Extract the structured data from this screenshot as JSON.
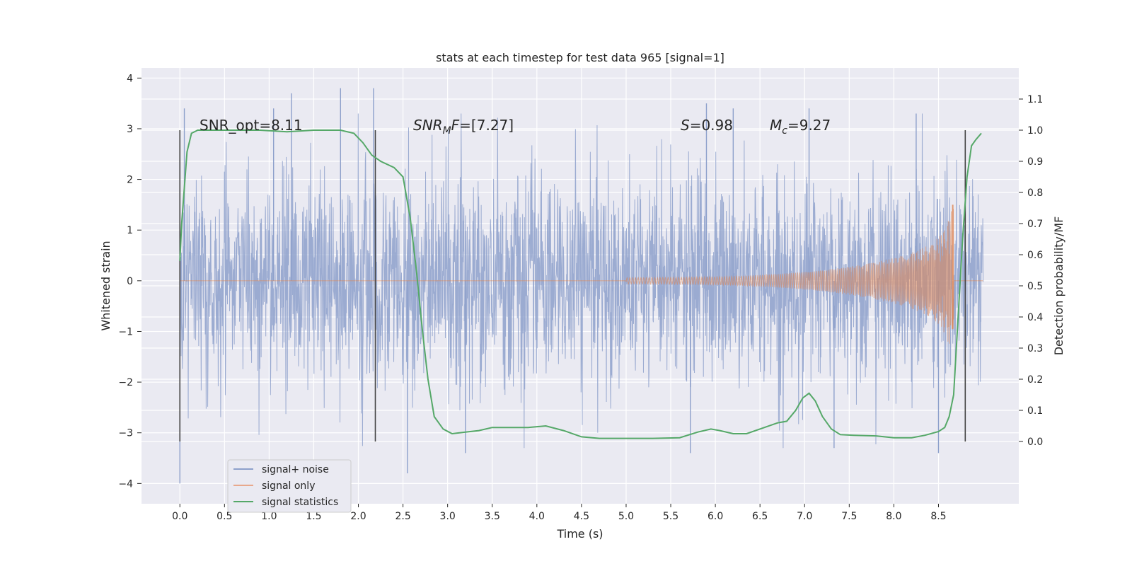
{
  "chart_data": {
    "type": "line",
    "title": "stats at each timestep for test data 965 [signal=1]",
    "xlabel": "Time (s)",
    "ylabel_left": "Whitened strain",
    "ylabel_right": "Detection probability/MF",
    "xlim": [
      -0.43,
      9.4
    ],
    "ylim_left": [
      -4.4,
      4.2
    ],
    "ylim_right": [
      -0.2,
      1.2
    ],
    "x_ticks": [
      "0.0",
      "0.5",
      "1.0",
      "1.5",
      "2.0",
      "2.5",
      "3.0",
      "3.5",
      "4.0",
      "4.5",
      "5.0",
      "5.5",
      "6.0",
      "6.5",
      "7.0",
      "7.5",
      "8.0",
      "8.5"
    ],
    "y_left_ticks": [
      "4",
      "3",
      "2",
      "1",
      "0",
      "−1",
      "−2",
      "−3",
      "−4"
    ],
    "y_right_ticks": [
      "1.1",
      "1.0",
      "0.9",
      "0.8",
      "0.7",
      "0.6",
      "0.5",
      "0.4",
      "0.3",
      "0.2",
      "0.1",
      "0.0"
    ],
    "grid": true,
    "annotations": {
      "snr_opt": "SNR_opt=8.11",
      "snr_mf_sym": "SNR",
      "snr_mf_sub": "M",
      "snr_mf_mid": "F",
      "snr_mf_val": "=[7.27]",
      "s_sym": "S",
      "s_val": "=0.98",
      "mc_sym": "M",
      "mc_sub": "c",
      "mc_val": "=9.27"
    },
    "vertical_markers": [
      0.0,
      2.19,
      8.8
    ],
    "legend": {
      "position": "lower-left",
      "entries": [
        {
          "label": "signal+ noise",
          "color": "#8da0cb"
        },
        {
          "label": "signal only",
          "color": "#e8a88c"
        },
        {
          "label": "signal statistics",
          "color": "#55a868"
        }
      ]
    },
    "series": [
      {
        "name": "signal+ noise",
        "axis": "left",
        "color": "#8da0cb",
        "x_range": [
          0.0,
          9.0
        ],
        "typical_envelope": [
          -2.1,
          2.3
        ],
        "spikes": [
          {
            "x": 0.0,
            "y": -4.0
          },
          {
            "x": 0.05,
            "y": 3.4
          },
          {
            "x": 1.05,
            "y": 3.4
          },
          {
            "x": 1.25,
            "y": 3.7
          },
          {
            "x": 1.8,
            "y": 3.8
          },
          {
            "x": 2.17,
            "y": 3.8
          },
          {
            "x": 2.55,
            "y": -3.8
          },
          {
            "x": 3.2,
            "y": -3.4
          },
          {
            "x": 5.72,
            "y": -3.4
          },
          {
            "x": 5.9,
            "y": 3.5
          },
          {
            "x": 6.2,
            "y": 3.4
          },
          {
            "x": 7.05,
            "y": 3.4
          },
          {
            "x": 7.33,
            "y": -3.3
          },
          {
            "x": 8.25,
            "y": 3.3
          },
          {
            "x": 8.5,
            "y": -3.4
          }
        ]
      },
      {
        "name": "signal only",
        "axis": "left",
        "color": "#dd8452",
        "x_range": [
          0.0,
          9.0
        ],
        "chirp_start": 5.0,
        "chirp_end": 8.67,
        "peak_upper": 1.5,
        "peak_lower": -0.95
      },
      {
        "name": "signal statistics",
        "axis": "right",
        "color": "#55a868",
        "x": [
          0.0,
          0.02,
          0.08,
          0.13,
          0.2,
          0.28,
          0.4,
          0.6,
          0.9,
          1.2,
          1.5,
          1.8,
          1.95,
          2.05,
          2.15,
          2.25,
          2.4,
          2.5,
          2.58,
          2.65,
          2.72,
          2.78,
          2.85,
          2.95,
          3.05,
          3.2,
          3.35,
          3.5,
          3.7,
          3.9,
          4.1,
          4.3,
          4.5,
          4.7,
          5.0,
          5.3,
          5.6,
          5.8,
          5.95,
          6.05,
          6.2,
          6.35,
          6.55,
          6.7,
          6.8,
          6.9,
          6.98,
          7.05,
          7.12,
          7.2,
          7.3,
          7.4,
          7.55,
          7.8,
          8.0,
          8.2,
          8.35,
          8.5,
          8.57,
          8.62,
          8.67,
          8.72,
          8.77,
          8.82,
          8.87,
          8.92,
          8.98
        ],
        "values": [
          0.58,
          0.7,
          0.93,
          0.99,
          1.0,
          1.0,
          1.0,
          1.0,
          1.0,
          0.995,
          1.0,
          1.0,
          0.99,
          0.96,
          0.92,
          0.9,
          0.88,
          0.85,
          0.72,
          0.55,
          0.35,
          0.2,
          0.08,
          0.04,
          0.025,
          0.03,
          0.035,
          0.045,
          0.045,
          0.045,
          0.05,
          0.035,
          0.015,
          0.01,
          0.01,
          0.01,
          0.012,
          0.03,
          0.04,
          0.035,
          0.025,
          0.025,
          0.045,
          0.06,
          0.065,
          0.1,
          0.14,
          0.155,
          0.13,
          0.08,
          0.04,
          0.022,
          0.02,
          0.018,
          0.012,
          0.012,
          0.02,
          0.032,
          0.045,
          0.08,
          0.15,
          0.4,
          0.65,
          0.85,
          0.95,
          0.97,
          0.99
        ]
      }
    ]
  }
}
